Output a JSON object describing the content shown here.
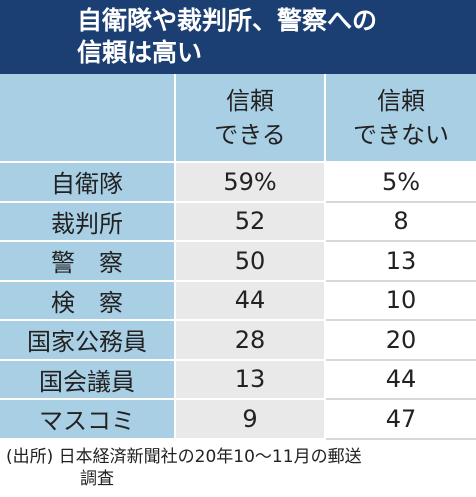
{
  "title": {
    "line1": "自衛隊や裁判所、警察への",
    "line2": "信頼は高い"
  },
  "chart_data": {
    "type": "table",
    "columns": [
      "信頼\nできる",
      "信頼\nできない"
    ],
    "rows": [
      {
        "label": "自衛隊",
        "trust": "59%",
        "distrust": "5%"
      },
      {
        "label": "裁判所",
        "trust": "52",
        "distrust": "8"
      },
      {
        "label": "警　察",
        "trust": "50",
        "distrust": "13"
      },
      {
        "label": "検　察",
        "trust": "44",
        "distrust": "10"
      },
      {
        "label": "国家公務員",
        "trust": "28",
        "distrust": "20"
      },
      {
        "label": "国会議員",
        "trust": "13",
        "distrust": "44"
      },
      {
        "label": "マスコミ",
        "trust": "9",
        "distrust": "47"
      }
    ],
    "values_trust": [
      59,
      52,
      50,
      44,
      28,
      13,
      9
    ],
    "values_distrust": [
      5,
      8,
      13,
      10,
      20,
      44,
      47
    ]
  },
  "header": {
    "col1_line1": "信頼",
    "col1_line2": "できる",
    "col2_line1": "信頼",
    "col2_line2": "できない"
  },
  "source": {
    "line1": "(出所) 日本経済新聞社の20年10〜11月の郵送",
    "line2": "調査"
  },
  "colors": {
    "title_bg": "#1c3f73",
    "header_bg": "#a9cfe4",
    "trust_cell_bg": "#e9e9e9",
    "distrust_cell_bg": "#ffffff"
  }
}
